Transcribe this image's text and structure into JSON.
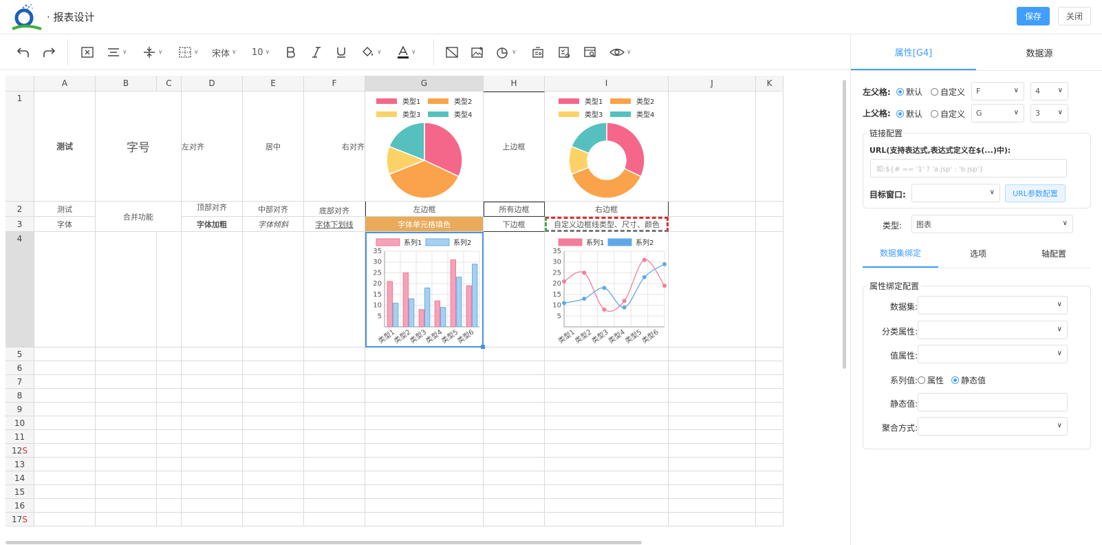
{
  "header": {
    "title": "· 报表设计",
    "save_label": "保存",
    "close_label": "关闭",
    "logo_icon": "q-logo-icon"
  },
  "toolbar": {
    "font_family": "宋体",
    "font_size": "10",
    "icons": [
      "undo-icon",
      "redo-icon",
      "merge-cells-icon",
      "align-horizontal-icon",
      "align-vertical-icon",
      "border-icon",
      "bold-icon",
      "italic-icon",
      "underline-icon",
      "fill-color-icon",
      "font-color-icon",
      "clear-format-icon",
      "insert-image-icon",
      "insert-chart-icon",
      "data-dictionary-icon",
      "form-icon",
      "preview-icon",
      "visibility-icon"
    ]
  },
  "grid": {
    "columns": [
      "A",
      "B",
      "C",
      "D",
      "E",
      "F",
      "G",
      "H",
      "I",
      "J",
      "K"
    ],
    "rows": [
      "1",
      "2",
      "3",
      "4",
      "5",
      "6",
      "7",
      "8",
      "9",
      "10",
      "11",
      "12",
      "13",
      "14",
      "15",
      "16",
      "17"
    ],
    "row12_flag": "S",
    "row17_flag": "S",
    "cells": {
      "a1": "测试",
      "b1": "字号",
      "d1": "左对齐",
      "e1": "居中",
      "f1": "右对齐",
      "h1": "上边框",
      "a2": "测试",
      "b2": "合并功能",
      "d2": "顶部对齐",
      "e2": "中部对齐",
      "f2": "底部对齐",
      "g2": "左边框",
      "h2": "所有边框",
      "i2": "右边框",
      "a3": "字体",
      "d3": "字体加粗",
      "e3": "字体倾斜",
      "f3": "字体下划线",
      "g3": "字体单元格填色",
      "h3": "下边框",
      "i3": "自定义边框线类型、尺寸、颜色"
    },
    "fill_color": "#e9ab5a",
    "selection_color": "#4a90e2"
  },
  "charts": {
    "pie": {
      "type": "pie",
      "legend": [
        "类型1",
        "类型2",
        "类型3",
        "类型4"
      ],
      "values": [
        32,
        37,
        12,
        19
      ],
      "colors": [
        "#f5678a",
        "#fba34a",
        "#fcd267",
        "#56c0be"
      ]
    },
    "donut": {
      "type": "pie",
      "legend": [
        "类型1",
        "类型2",
        "类型3",
        "类型4"
      ],
      "values": [
        32,
        37,
        12,
        19
      ],
      "colors": [
        "#f5678a",
        "#fba34a",
        "#fcd267",
        "#56c0be"
      ]
    },
    "bar": {
      "type": "bar",
      "categories": [
        "类型1",
        "类型2",
        "类型3",
        "类型4",
        "类型5",
        "类型6"
      ],
      "series": [
        {
          "name": "系列1",
          "values": [
            21,
            25,
            8,
            12,
            31,
            19
          ],
          "color": "#f5a3b8",
          "stroke": "#f07693"
        },
        {
          "name": "系列2",
          "values": [
            11,
            13,
            18,
            9,
            23,
            29
          ],
          "color": "#a6cff2",
          "stroke": "#6aaee6"
        }
      ],
      "yticks": [
        5,
        10,
        15,
        20,
        25,
        30,
        35
      ],
      "ylim": [
        0,
        35
      ]
    },
    "line": {
      "type": "line",
      "categories": [
        "类型1",
        "类型2",
        "类型3",
        "类型4",
        "类型5",
        "类型6"
      ],
      "series": [
        {
          "name": "系列1",
          "values": [
            21,
            25,
            8,
            12,
            31,
            19
          ],
          "color": "#f37d9a"
        },
        {
          "name": "系列2",
          "values": [
            11,
            13,
            18,
            9,
            23,
            29
          ],
          "color": "#5fa8e8"
        }
      ],
      "yticks": [
        5,
        10,
        15,
        20,
        25,
        30,
        35
      ],
      "ylim": [
        0,
        35
      ]
    }
  },
  "panel": {
    "tabs": [
      "属性[G4]",
      "数据源"
    ],
    "left_parent_label": "左父格:",
    "top_parent_label": "上父格:",
    "radio_default": "默认",
    "radio_custom": "自定义",
    "left_parent_col": "F",
    "left_parent_row": "4",
    "top_parent_col": "G",
    "top_parent_row": "3",
    "link_legend": "链接配置",
    "url_label": "URL(支持表达式,表达式定义在$(...)中):",
    "url_placeholder": "如:${# == '1' ? 'a.jsp' : 'b.jsp'}",
    "target_label": "目标窗口:",
    "target_value": "",
    "url_param_button": "URL参数配置",
    "type_label": "类型:",
    "type_value": "图表",
    "sub_tabs": [
      "数据集绑定",
      "选项",
      "轴配置"
    ],
    "bind_legend": "属性绑定配置",
    "dataset_label": "数据集:",
    "category_label": "分类属性:",
    "value_label": "值属性:",
    "series_label": "系列值:",
    "series_opt_attr": "属性",
    "series_opt_static": "静态值",
    "static_label": "静态值:",
    "agg_label": "聚合方式:"
  }
}
